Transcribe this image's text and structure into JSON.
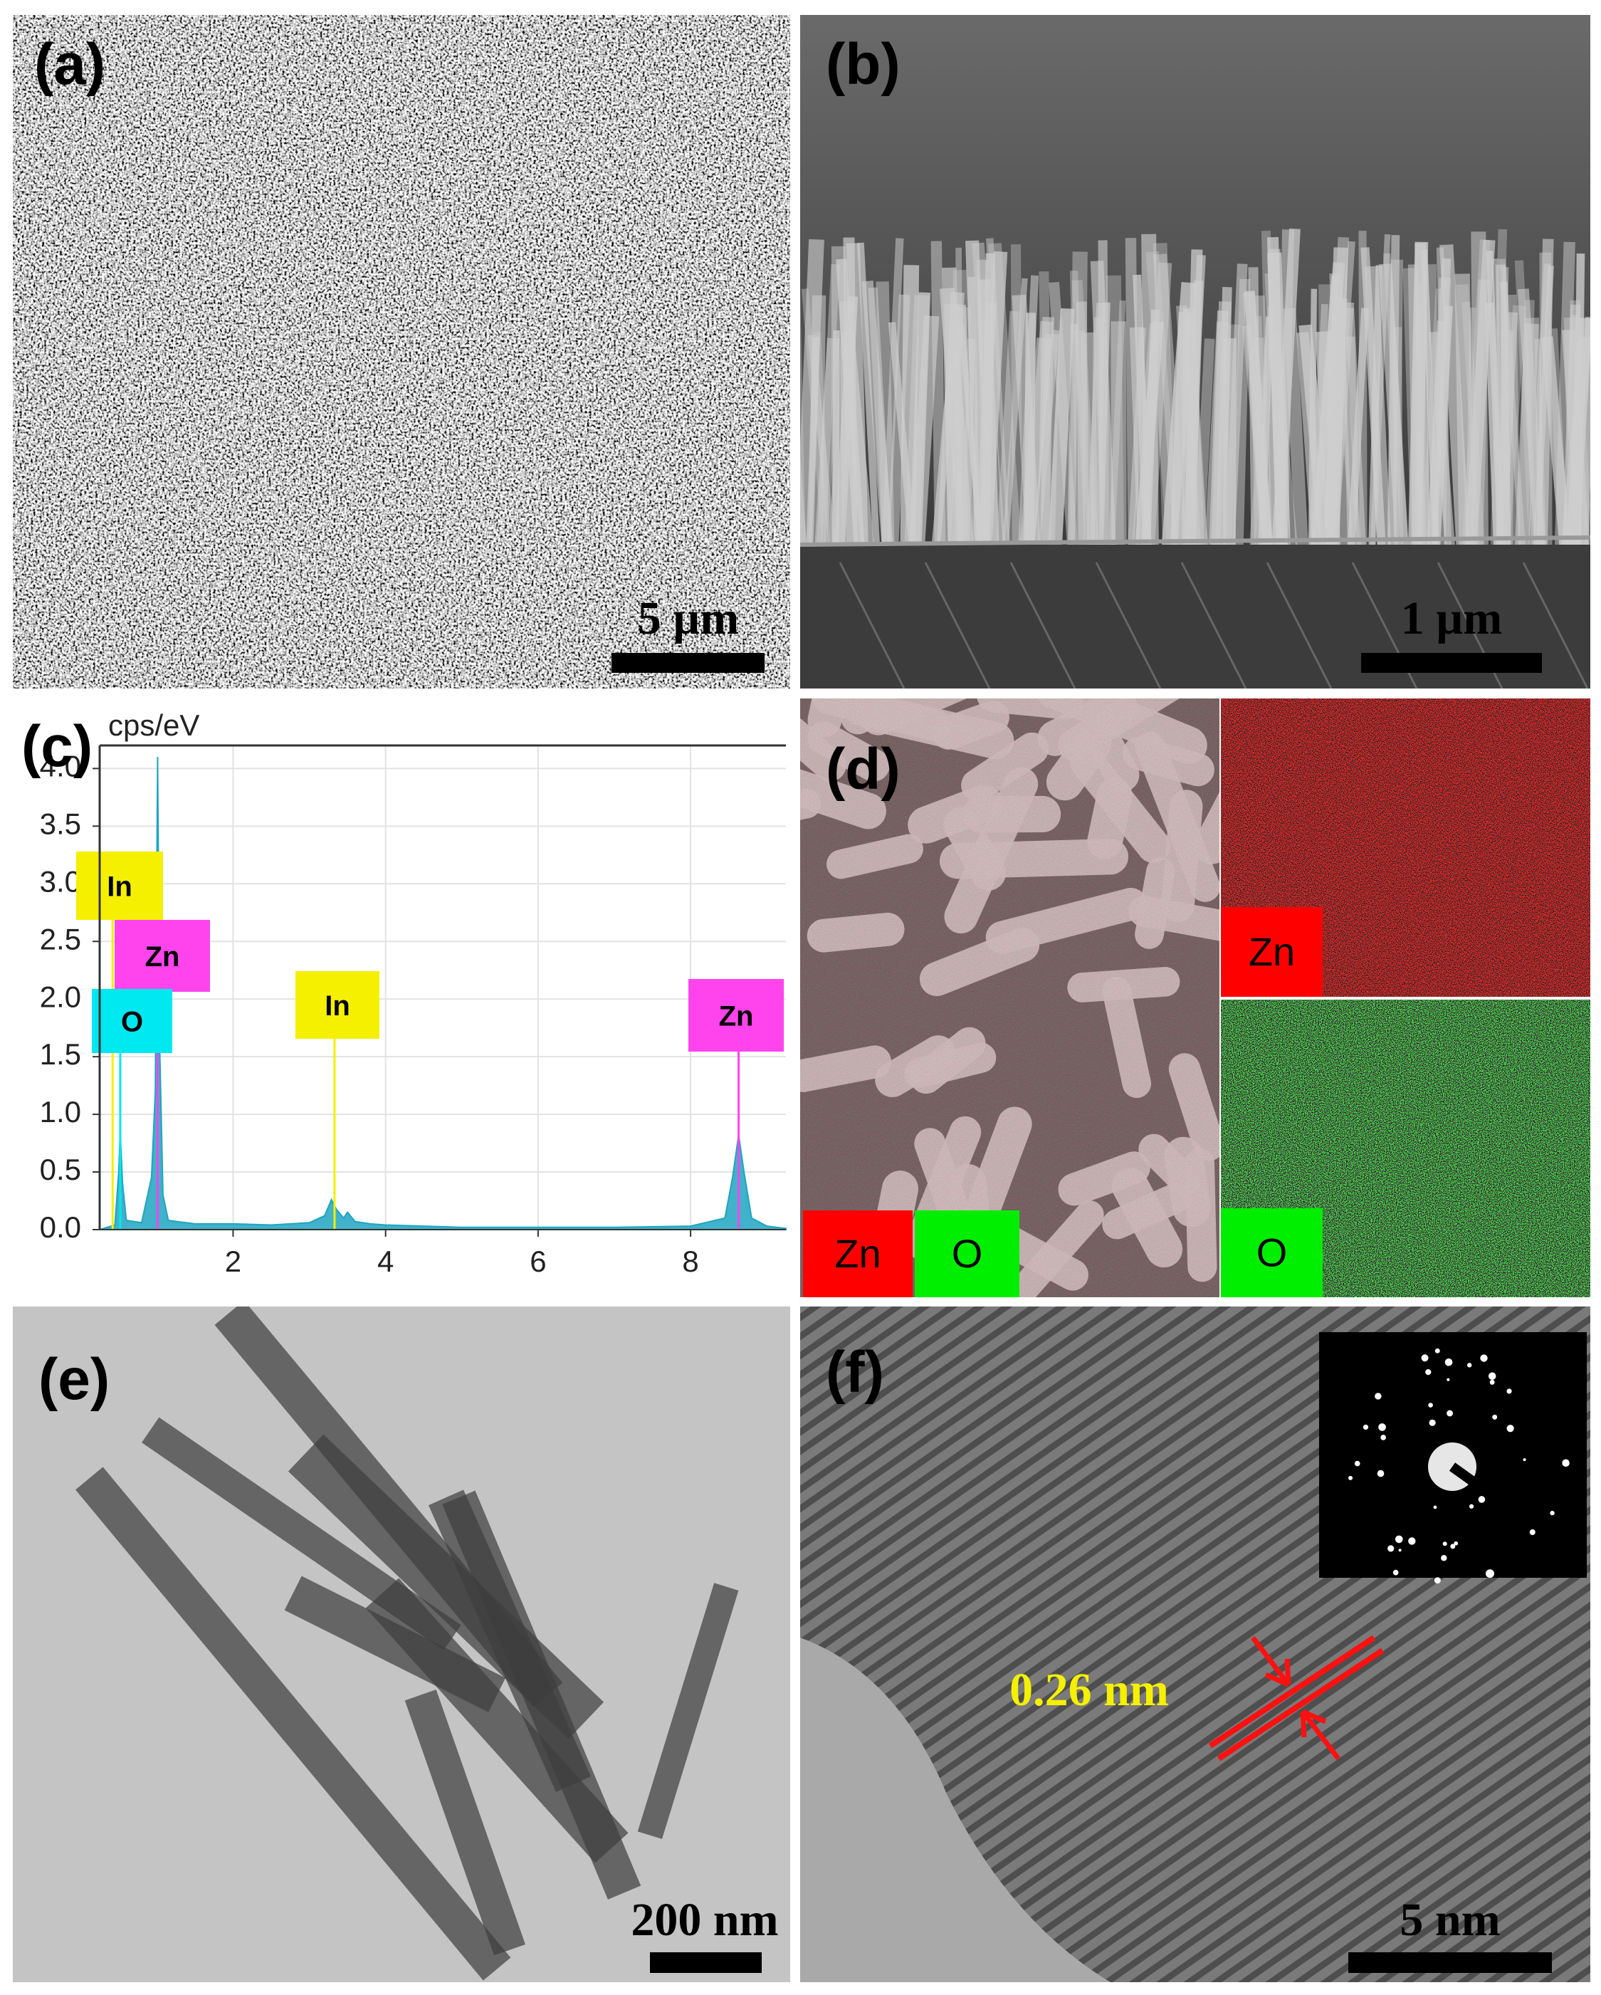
{
  "panels": {
    "a": {
      "label": "(a)",
      "scale_bar": "5 µm"
    },
    "b": {
      "label": "(b)",
      "scale_bar": "1 µm"
    },
    "d": {
      "label": "(d)",
      "map_labels": [
        "Zn",
        "O",
        "Zn",
        "O"
      ]
    },
    "e": {
      "label": "(e)",
      "scale_bar": "200 nm"
    },
    "f": {
      "label": "(f)",
      "scale_bar": "5 nm",
      "lattice_spacing": "0.26 nm"
    }
  },
  "chart_data": {
    "type": "area",
    "panel_label": "(c)",
    "y_label": "cps/eV",
    "color": "#1fa5c0",
    "grid": true,
    "x": [
      0.25,
      0.45,
      0.5,
      0.52,
      0.55,
      0.6,
      0.8,
      0.93,
      0.98,
      1.01,
      1.04,
      1.08,
      1.15,
      1.5,
      2.0,
      2.5,
      3.0,
      3.2,
      3.29,
      3.35,
      3.45,
      3.5,
      3.6,
      3.8,
      4.0,
      5.0,
      6.0,
      7.0,
      8.0,
      8.45,
      8.55,
      8.63,
      8.7,
      8.8,
      9.0,
      9.25
    ],
    "series": [
      {
        "color": "#1fa5c0",
        "values": [
          0.0,
          0.04,
          0.5,
          0.85,
          0.4,
          0.08,
          0.06,
          0.45,
          1.2,
          4.1,
          1.5,
          0.3,
          0.08,
          0.05,
          0.05,
          0.04,
          0.06,
          0.12,
          0.26,
          0.18,
          0.1,
          0.15,
          0.07,
          0.05,
          0.04,
          0.02,
          0.02,
          0.02,
          0.03,
          0.1,
          0.45,
          0.82,
          0.5,
          0.1,
          0.03,
          0.01
        ]
      }
    ],
    "markers": [
      {
        "label": "In",
        "energy": 0.42,
        "color": "#f5f000"
      },
      {
        "label": "Zn",
        "energy": 1.01,
        "color": "#ff44ee"
      },
      {
        "label": "O",
        "energy": 0.52,
        "color": "#00e8f0"
      },
      {
        "label": "In",
        "energy": 3.33,
        "color": "#f5f000"
      },
      {
        "label": "Zn",
        "energy": 8.63,
        "color": "#ff44ee"
      }
    ],
    "xlim": [
      0.25,
      9.25
    ],
    "ylim": [
      0,
      4.2
    ],
    "xticks": [
      2,
      4,
      6,
      8
    ],
    "yticks": [
      {
        "value": 0,
        "label": "0.0"
      },
      {
        "value": 0.5,
        "label": "0.5"
      },
      {
        "value": 1,
        "label": "1.0"
      },
      {
        "value": 1.5,
        "label": "1.5"
      },
      {
        "value": 2,
        "label": "2.0"
      },
      {
        "value": 2.5,
        "label": "2.5"
      },
      {
        "value": 3,
        "label": "3.0"
      },
      {
        "value": 3.5,
        "label": "3.5"
      },
      {
        "value": 4,
        "label": "4.0"
      }
    ]
  }
}
